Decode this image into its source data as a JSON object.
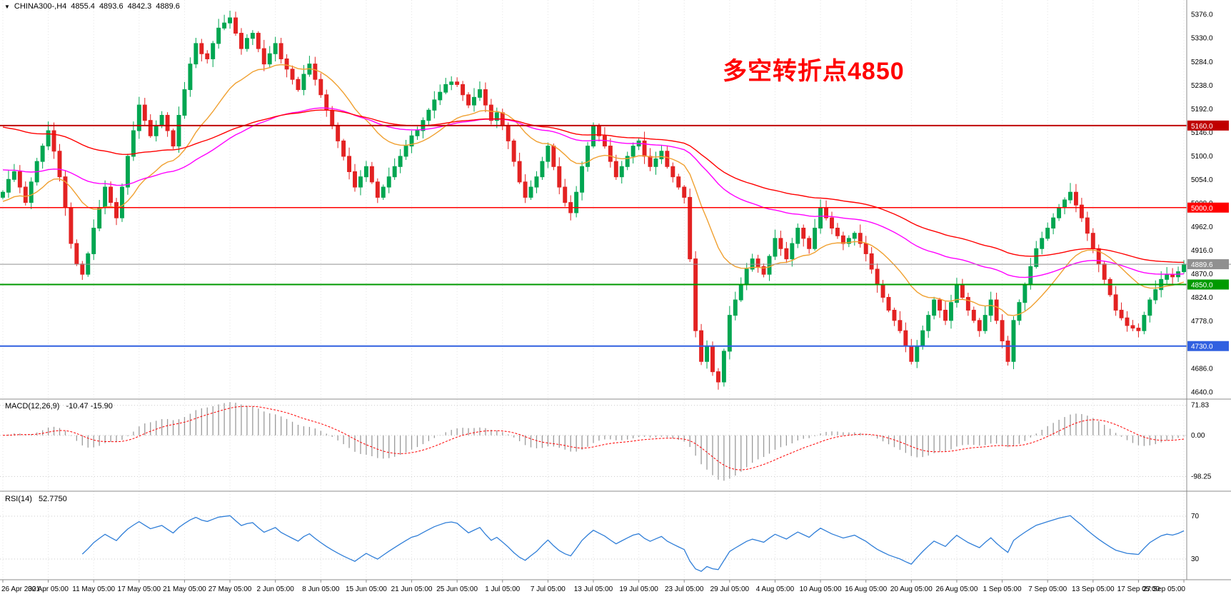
{
  "quote_bar": {
    "symbol_period": "CHINA300-,H4",
    "open": "4855.4",
    "high": "4893.6",
    "low": "4842.3",
    "close": "4889.6"
  },
  "annotation": {
    "text": "多空转折点4850",
    "color": "#ff0000"
  },
  "chart_data": {
    "type": "candlestick",
    "symbol": "CHINA300-",
    "timeframe": "H4",
    "title": "CHINA300-,H4 4855.4 4893.6 4842.3 4889.6",
    "x_labels": [
      "26 Apr 2021",
      "30 Apr 05:00",
      "11 May 05:00",
      "17 May 05:00",
      "21 May 05:00",
      "27 May 05:00",
      "2 Jun 05:00",
      "8 Jun 05:00",
      "15 Jun 05:00",
      "21 Jun 05:00",
      "25 Jun 05:00",
      "1 Jul 05:00",
      "7 Jul 05:00",
      "13 Jul 05:00",
      "19 Jul 05:00",
      "23 Jul 05:00",
      "29 Jul 05:00",
      "4 Aug 05:00",
      "10 Aug 05:00",
      "16 Aug 05:00",
      "20 Aug 05:00",
      "26 Aug 05:00",
      "1 Sep 05:00",
      "7 Sep 05:00",
      "13 Sep 05:00",
      "17 Sep 05:00",
      "27 Sep 05:00"
    ],
    "label_every_n_candles": 8,
    "price_axis_ticks": [
      "5376.0",
      "5330.0",
      "5284.0",
      "5238.0",
      "5192.0",
      "5146.0",
      "5100.0",
      "5054.0",
      "5008.0",
      "4962.0",
      "4916.0",
      "4870.0",
      "4824.0",
      "4778.0",
      "4732.0",
      "4686.0",
      "4640.0"
    ],
    "price_range": [
      4628,
      5402
    ],
    "closes": [
      5030,
      5055,
      5070,
      5040,
      5010,
      5050,
      5090,
      5120,
      5150,
      5110,
      5060,
      5000,
      4930,
      4890,
      4870,
      4910,
      4960,
      5000,
      5040,
      5010,
      4980,
      5040,
      5100,
      5150,
      5200,
      5170,
      5140,
      5160,
      5180,
      5150,
      5120,
      5180,
      5230,
      5280,
      5320,
      5300,
      5290,
      5320,
      5350,
      5360,
      5370,
      5340,
      5310,
      5330,
      5340,
      5310,
      5280,
      5300,
      5320,
      5290,
      5270,
      5250,
      5230,
      5260,
      5280,
      5250,
      5220,
      5190,
      5160,
      5130,
      5100,
      5070,
      5040,
      5060,
      5080,
      5050,
      5020,
      5040,
      5060,
      5080,
      5100,
      5120,
      5140,
      5150,
      5170,
      5190,
      5210,
      5225,
      5240,
      5245,
      5240,
      5220,
      5200,
      5215,
      5230,
      5200,
      5170,
      5185,
      5160,
      5130,
      5090,
      5050,
      5020,
      5040,
      5060,
      5090,
      5120,
      5080,
      5040,
      5010,
      4990,
      5030,
      5080,
      5120,
      5160,
      5140,
      5120,
      5090,
      5060,
      5080,
      5100,
      5120,
      5130,
      5100,
      5080,
      5095,
      5110,
      5080,
      5060,
      5040,
      5020,
      4900,
      4760,
      4700,
      4730,
      4680,
      4660,
      4720,
      4790,
      4820,
      4850,
      4880,
      4900,
      4885,
      4870,
      4905,
      4940,
      4920,
      4900,
      4930,
      4960,
      4940,
      4920,
      4960,
      5000,
      4980,
      4960,
      4945,
      4930,
      4940,
      4950,
      4930,
      4910,
      4880,
      4850,
      4825,
      4800,
      4780,
      4760,
      4730,
      4700,
      4730,
      4760,
      4790,
      4820,
      4800,
      4780,
      4815,
      4850,
      4825,
      4800,
      4780,
      4760,
      4790,
      4820,
      4780,
      4740,
      4700,
      4780,
      4815,
      4850,
      4885,
      4920,
      4940,
      4960,
      4980,
      5000,
      5015,
      5030,
      5005,
      4980,
      4950,
      4920,
      4890,
      4860,
      4830,
      4800,
      4785,
      4770,
      4765,
      4760,
      4790,
      4820,
      4840,
      4860,
      4870,
      4865,
      4875,
      4889.6
    ],
    "candle_up_color": "#00a651",
    "candle_down_color": "#e32222",
    "horizontal_levels": [
      {
        "value": 5160,
        "label": "5160.0",
        "color": "#c00000",
        "width": 2
      },
      {
        "value": 5000,
        "label": "5000.0",
        "color": "#ff0000",
        "width": 1.5
      },
      {
        "value": 4850,
        "label": "4850.0",
        "color": "#009a00",
        "width": 2
      },
      {
        "value": 4730,
        "label": "4730.0",
        "color": "#3060e0",
        "width": 2
      }
    ],
    "current_price": {
      "value": 4889.6,
      "label": "4889.6",
      "color": "#909090"
    },
    "moving_averages": [
      {
        "name": "ma-fast-orange",
        "color": "#f0a030",
        "period": 20,
        "seed": 5010
      },
      {
        "name": "ma-mid-magenta",
        "color": "#ff00ff",
        "period": 62,
        "seed": 5075
      },
      {
        "name": "ma-slow-red",
        "color": "#ff0000",
        "period": 90,
        "seed": 5160
      }
    ],
    "macd": {
      "label": "MACD(12,26,9)",
      "values_text": "-10.47 -15.90",
      "fast": 12,
      "slow": 26,
      "signal": 9,
      "axis_ticks": [
        71.83,
        0.0,
        -98.25
      ],
      "axis_tick_labels": [
        "71.83",
        "0.00",
        "-98.25"
      ],
      "range": [
        -130,
        85
      ],
      "histogram_color": "#9a9a9a",
      "signal_color": "#ff0000"
    },
    "rsi": {
      "label": "RSI(14)",
      "value_text": "52.7750",
      "period": 14,
      "levels": [
        70,
        30
      ],
      "axis_tick_labels": [
        "70",
        "30"
      ],
      "range": [
        12,
        92
      ],
      "line_color": "#2f7ed8"
    },
    "grid_color": "#e4e4e4"
  }
}
